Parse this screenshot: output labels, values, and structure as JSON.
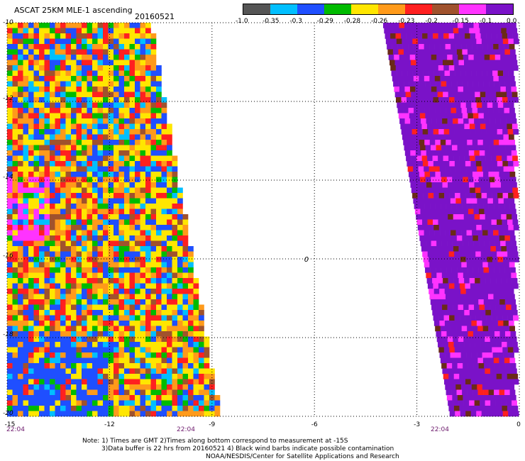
{
  "header": {
    "title": "ASCAT 25KM MLE-1 ascending",
    "date": "20160521"
  },
  "colorbar": {
    "colors": [
      "#555555",
      "#00bfff",
      "#1f4fff",
      "#00bb00",
      "#ffe600",
      "#ff9a1a",
      "#ff2020",
      "#a0522d",
      "#ff33ff",
      "#7a12c8"
    ],
    "labels": [
      "-1.0",
      "-0.35",
      "-0.3",
      "-0.29",
      "-0.28",
      "-0.26",
      "-0.23",
      "-0.2",
      "-0.15",
      "-0.1",
      "0.0"
    ]
  },
  "axes": {
    "x_ticks": [
      "-15",
      "-12",
      "-9",
      "-6",
      "-3",
      "0"
    ],
    "y_ticks": [
      "-10",
      "-12",
      "-14",
      "-16",
      "-18",
      "-20"
    ],
    "xlim": [
      -15,
      0
    ],
    "ylim": [
      -20,
      -10
    ]
  },
  "times": [
    "22:04",
    "22:04",
    "22:04"
  ],
  "marker": {
    "label": "0",
    "lon": -6.3,
    "lat": -16.0
  },
  "notes": {
    "line1": "Note: 1) Times are GMT 2)Times along bottom correspond to measurement at -15S",
    "line2": "3)Data buffer is 22 hrs from 20160521 4) Black wind barbs indicate possible contamination",
    "line3": "NOAA/NESDIS/Center for Satellite Applications and Research"
  }
}
